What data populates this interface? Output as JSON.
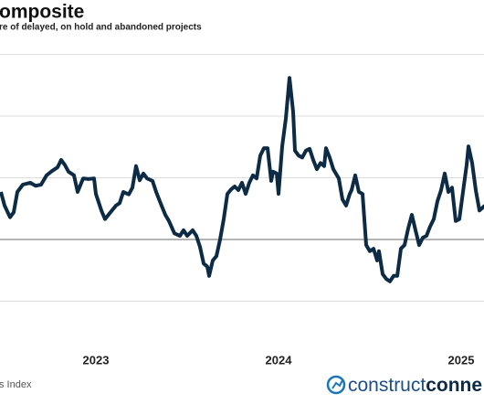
{
  "chart_data": {
    "type": "line",
    "title": "omposite",
    "subtitle": "re of delayed, on hold and abandoned projects",
    "source": "s Index",
    "logo": [
      "construct",
      "conne"
    ],
    "x": [
      2022.48,
      2022.5,
      2022.53,
      2022.55,
      2022.57,
      2022.6,
      2022.64,
      2022.67,
      2022.7,
      2022.73,
      2022.76,
      2022.79,
      2022.81,
      2022.83,
      2022.85,
      2022.88,
      2022.9,
      2022.93,
      2022.96,
      2022.99,
      2023.0,
      2023.03,
      2023.05,
      2023.08,
      2023.11,
      2023.13,
      2023.15,
      2023.18,
      2023.2,
      2023.22,
      2023.24,
      2023.26,
      2023.28,
      2023.31,
      2023.33,
      2023.35,
      2023.38,
      2023.4,
      2023.43,
      2023.46,
      2023.48,
      2023.5,
      2023.53,
      2023.55,
      2023.57,
      2023.59,
      2023.61,
      2023.62,
      2023.64,
      2023.66,
      2023.68,
      2023.7,
      2023.72,
      2023.74,
      2023.76,
      2023.78,
      2023.8,
      2023.82,
      2023.84,
      2023.86,
      2023.88,
      2023.9,
      2023.92,
      2023.94,
      2023.96,
      2023.97,
      2023.99,
      2024.0,
      2024.02,
      2024.04,
      2024.06,
      2024.08,
      2024.09,
      2024.11,
      2024.13,
      2024.15,
      2024.17,
      2024.19,
      2024.21,
      2024.23,
      2024.25,
      2024.26,
      2024.28,
      2024.3,
      2024.33,
      2024.35,
      2024.37,
      2024.39,
      2024.4,
      2024.42,
      2024.44,
      2024.46,
      2024.48,
      2024.5,
      2024.52,
      2024.54,
      2024.55,
      2024.57,
      2024.59,
      2024.61,
      2024.63,
      2024.65,
      2024.67,
      2024.69,
      2024.71,
      2024.73,
      2024.75,
      2024.77,
      2024.79,
      2024.81,
      2024.83,
      2024.85,
      2024.87,
      2024.89,
      2024.91,
      2024.93,
      2024.95,
      2024.97,
      2024.99,
      2025.01,
      2025.03,
      2025.04,
      2025.06,
      2025.08,
      2025.1,
      2025.13
    ],
    "series": [
      {
        "color": "#0d2b45",
        "values": [
          0.77,
          0.55,
          0.36,
          0.44,
          0.77,
          0.89,
          0.92,
          0.87,
          0.89,
          1.04,
          1.11,
          1.17,
          1.29,
          1.21,
          1.1,
          1.04,
          0.77,
          0.99,
          0.98,
          0.99,
          0.74,
          0.47,
          0.33,
          0.44,
          0.55,
          0.59,
          0.77,
          0.73,
          0.84,
          1.19,
          0.96,
          1.07,
          0.99,
          0.95,
          0.77,
          0.62,
          0.4,
          0.3,
          0.1,
          0.06,
          0.15,
          0.06,
          0.15,
          0.06,
          -0.12,
          -0.39,
          -0.44,
          -0.59,
          -0.34,
          -0.27,
          0.0,
          0.33,
          0.74,
          0.81,
          0.86,
          0.8,
          0.92,
          0.74,
          0.92,
          1.04,
          0.99,
          1.36,
          1.48,
          1.48,
          0.95,
          1.1,
          1.07,
          0.74,
          1.51,
          1.96,
          2.62,
          2.07,
          1.44,
          1.36,
          1.33,
          1.44,
          1.47,
          1.29,
          1.14,
          1.24,
          1.19,
          1.48,
          1.33,
          1.14,
          0.99,
          0.65,
          0.55,
          0.74,
          0.8,
          1.04,
          0.77,
          0.74,
          -0.09,
          -0.19,
          -0.15,
          -0.34,
          -0.19,
          -0.56,
          -0.64,
          -0.68,
          -0.59,
          -0.59,
          -0.15,
          -0.09,
          0.18,
          0.4,
          0.15,
          -0.09,
          0.03,
          0.06,
          0.21,
          0.33,
          0.62,
          0.8,
          1.07,
          0.77,
          0.84,
          0.3,
          0.33,
          0.77,
          1.21,
          1.51,
          1.24,
          0.8,
          0.47,
          0.55
        ]
      }
    ],
    "xlim": [
      2022.475,
      2025.125
    ],
    "xticks": [
      2023,
      2024,
      2025
    ],
    "ylim": [
      -1.63,
      3.29
    ],
    "gridlines": [
      -1,
      0,
      1,
      2,
      3
    ]
  }
}
